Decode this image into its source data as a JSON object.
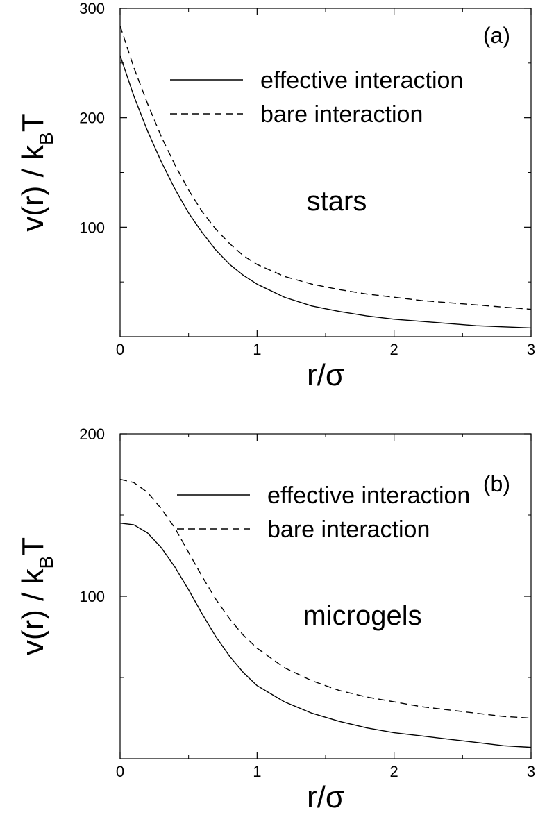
{
  "chart_data": [
    {
      "type": "line",
      "panel_tag": "(a)",
      "annotation": "stars",
      "xlabel": "r/σ",
      "ylabel_main": "v(r) / k",
      "ylabel_sub": "B",
      "ylabel_end": "T",
      "xlim": [
        0,
        3
      ],
      "ylim": [
        0,
        300
      ],
      "xticks": [
        0,
        1,
        2,
        3
      ],
      "xtick_labels": [
        "0",
        "1",
        "2",
        "3"
      ],
      "yticks": [
        100,
        200,
        300
      ],
      "ytick_labels": [
        "100",
        "200",
        "300"
      ],
      "x": [
        0,
        0.1,
        0.2,
        0.3,
        0.4,
        0.5,
        0.6,
        0.7,
        0.8,
        0.9,
        1.0,
        1.2,
        1.4,
        1.6,
        1.8,
        2.0,
        2.2,
        2.4,
        2.6,
        2.8,
        3.0
      ],
      "series": [
        {
          "name": "effective interaction",
          "style": "solid",
          "values": [
            257,
            220,
            188,
            160,
            135,
            113,
            95,
            79,
            66,
            56,
            48,
            36,
            28,
            23,
            19,
            16,
            14,
            12,
            10,
            9,
            8
          ]
        },
        {
          "name": "bare interaction",
          "style": "dashed",
          "values": [
            284,
            246,
            213,
            183,
            157,
            134,
            114,
            98,
            85,
            74,
            66,
            55,
            48,
            43,
            39,
            36,
            33,
            31,
            29,
            27,
            25
          ]
        }
      ]
    },
    {
      "type": "line",
      "panel_tag": "(b)",
      "annotation": "microgels",
      "xlabel": "r/σ",
      "ylabel_main": "v(r) / k",
      "ylabel_sub": "B",
      "ylabel_end": "T",
      "xlim": [
        0,
        3
      ],
      "ylim": [
        0,
        200
      ],
      "xticks": [
        0,
        1,
        2,
        3
      ],
      "xtick_labels": [
        "0",
        "1",
        "2",
        "3"
      ],
      "yticks": [
        100,
        200
      ],
      "ytick_labels": [
        "100",
        "200"
      ],
      "x": [
        0,
        0.1,
        0.2,
        0.3,
        0.4,
        0.5,
        0.6,
        0.7,
        0.8,
        0.9,
        1.0,
        1.2,
        1.4,
        1.6,
        1.8,
        2.0,
        2.2,
        2.4,
        2.6,
        2.8,
        3.0
      ],
      "series": [
        {
          "name": "effective interaction",
          "style": "solid",
          "values": [
            145,
            144,
            139,
            130,
            118,
            104,
            89,
            75,
            63,
            53,
            45,
            35,
            28,
            23,
            19,
            16,
            14,
            12,
            10,
            8,
            7
          ]
        },
        {
          "name": "bare interaction",
          "style": "dashed",
          "values": [
            172,
            170,
            164,
            154,
            142,
            127,
            112,
            98,
            86,
            76,
            68,
            56,
            48,
            42,
            38,
            35,
            32,
            30,
            28,
            26,
            25
          ]
        }
      ]
    }
  ]
}
